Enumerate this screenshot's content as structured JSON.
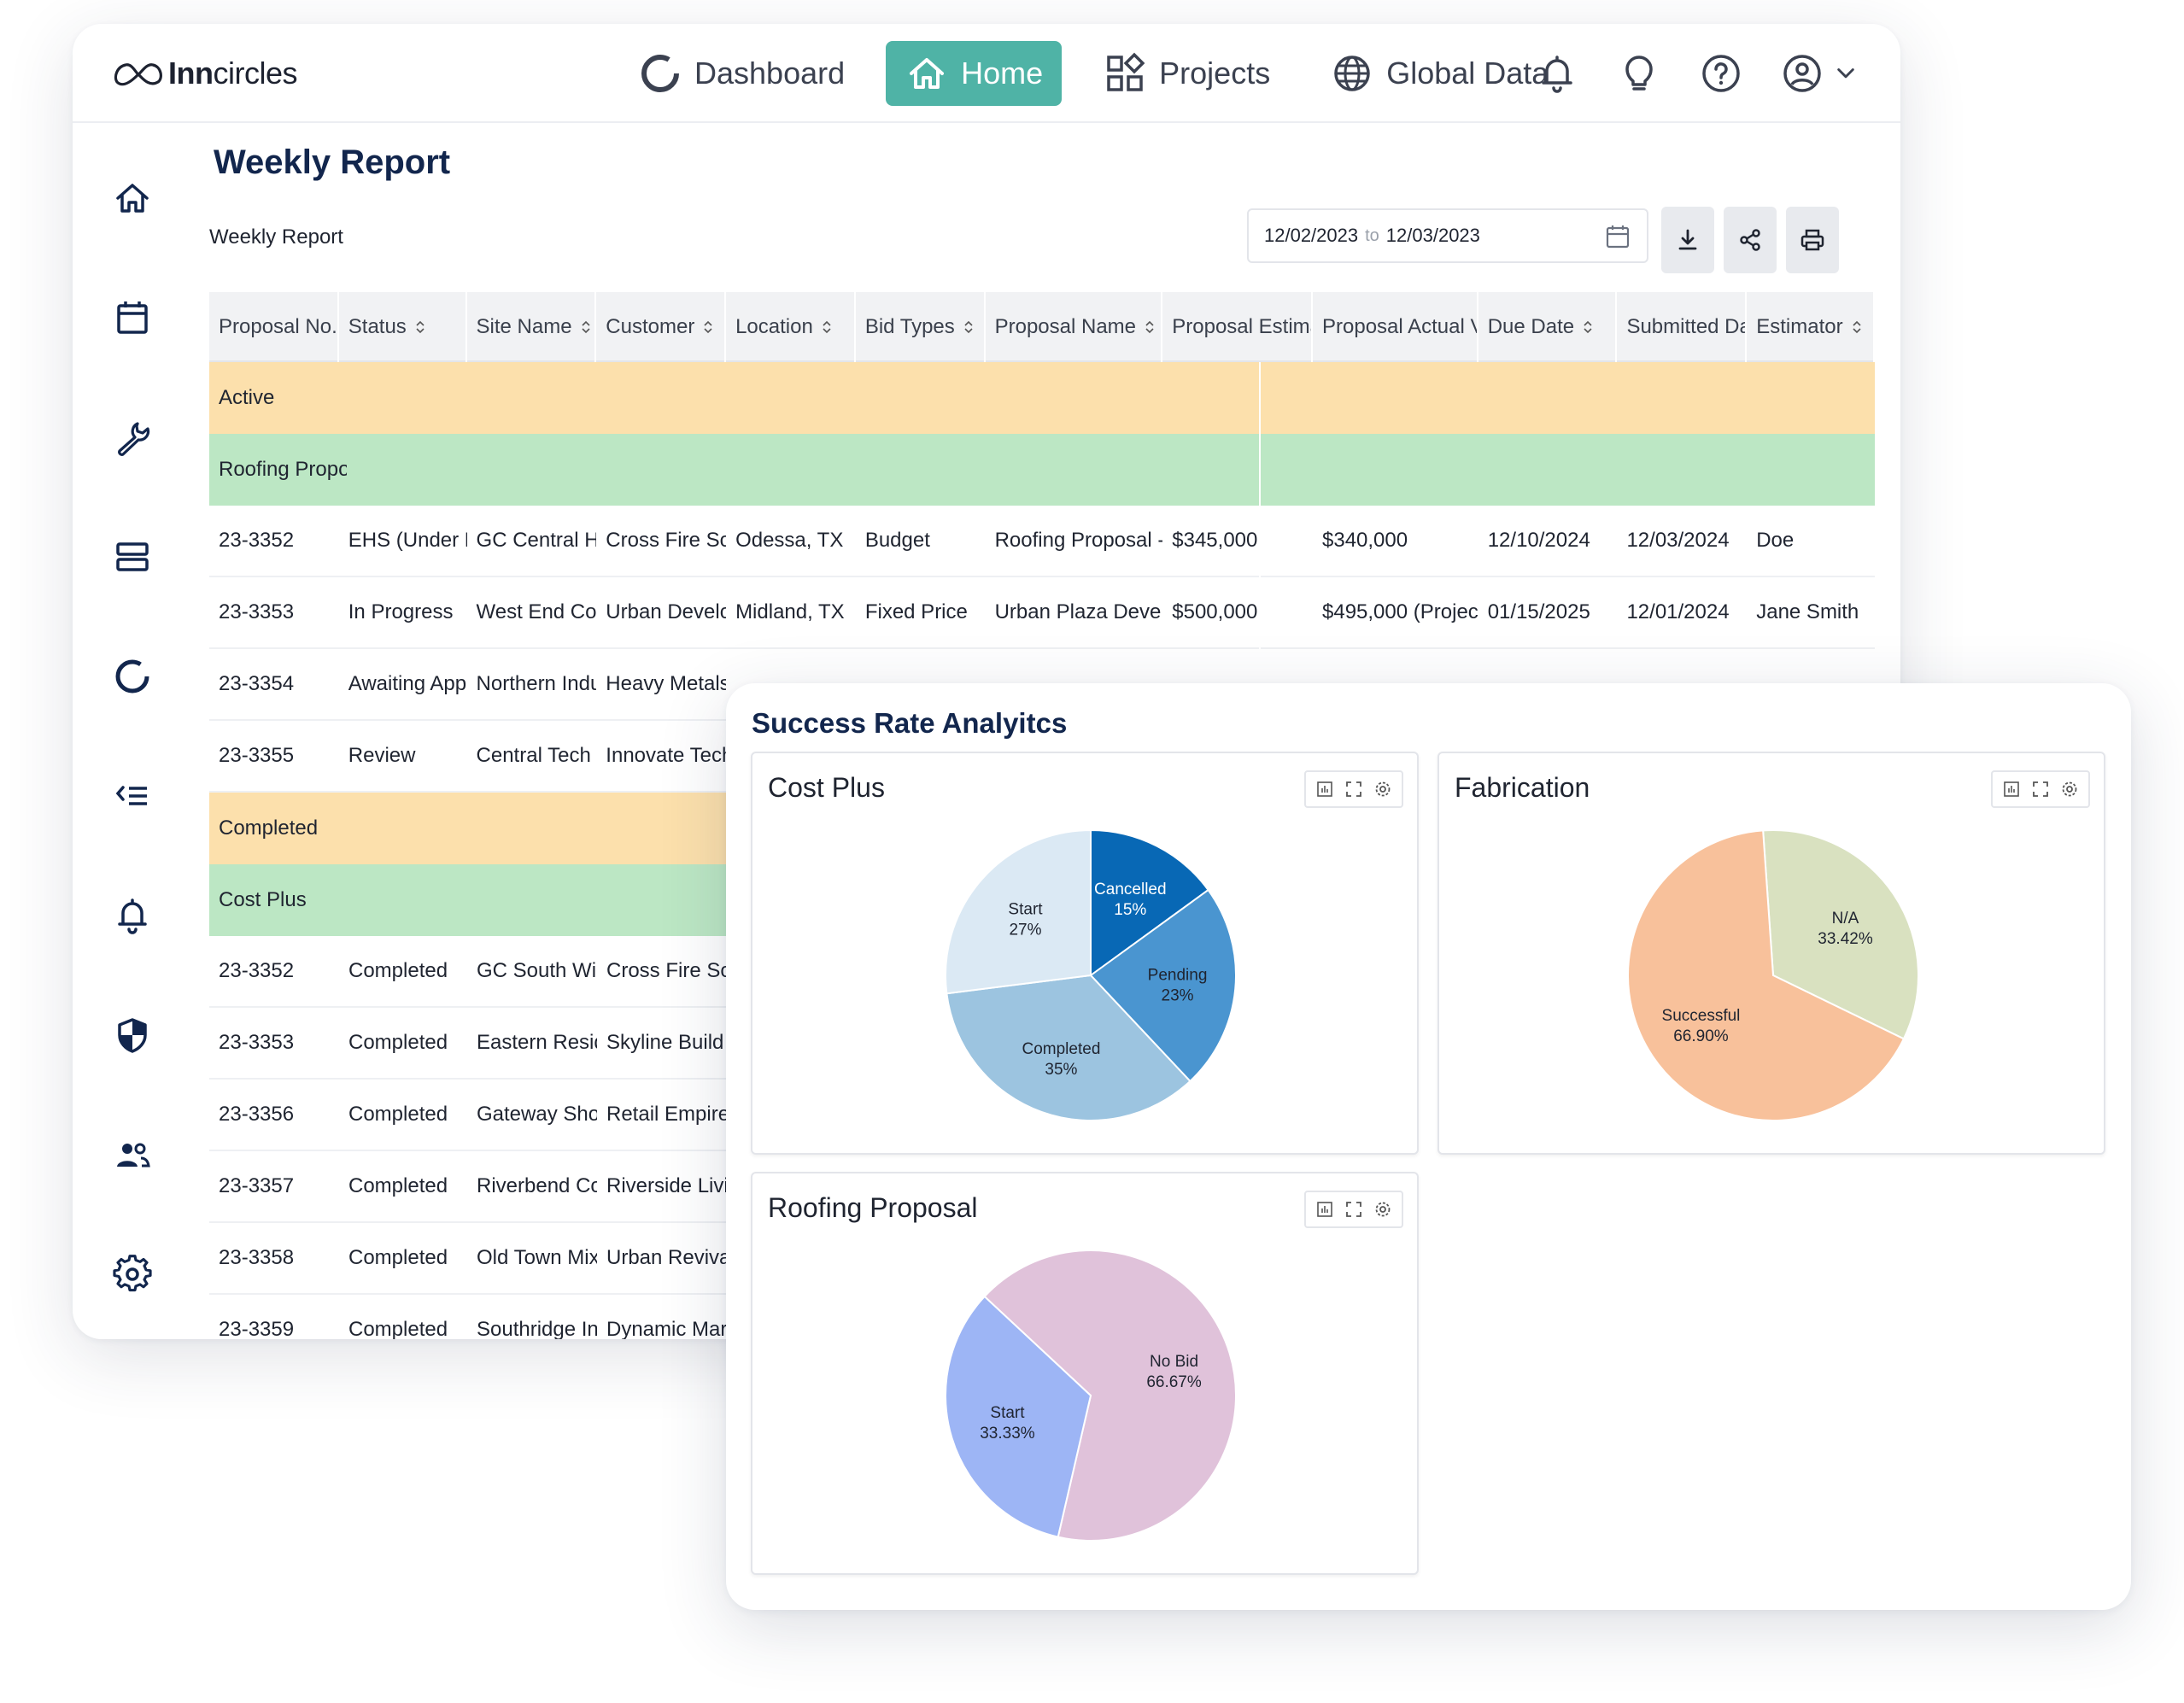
{
  "brand": {
    "name_bold": "Inn",
    "name_rest": "circles"
  },
  "nav": {
    "dashboard": "Dashboard",
    "home": "Home",
    "projects": "Projects",
    "global_data": "Global Data"
  },
  "colors": {
    "accent": "#4fb3a6",
    "title_navy": "#12264d",
    "row_orange": "#fce0ac",
    "row_green": "#bce7c4"
  },
  "page": {
    "title": "Weekly Report",
    "subtitle": "Weekly Report"
  },
  "date_range": {
    "from": "12/02/2023",
    "sep": "to",
    "to": "12/03/2023"
  },
  "table": {
    "headers": [
      "Proposal No.",
      "Status",
      "Site Name",
      "Customer",
      "Location",
      "Bid Types",
      "Proposal Name",
      "Proposal Estima",
      "Proposal Actual V",
      "Due Date",
      "Submitted Da",
      "Estimator"
    ],
    "group_active": "Active",
    "subgroup_roofing": "Roofing Propo",
    "active_rows": [
      [
        "23-3352",
        "EHS (Under R",
        "GC Central H",
        "Cross Fire Sol",
        "Odessa, TX",
        "Budget",
        "Roofing Proposal -",
        "$345,000",
        "$340,000",
        "12/10/2024",
        "12/03/2024",
        "Doe"
      ],
      [
        "23-3353",
        "In Progress",
        "West End Cor",
        "Urban Develo",
        "Midland, TX",
        "Fixed Price",
        "Urban Plaza Develo",
        "$500,000",
        "$495,000 (Projec",
        "01/15/2025",
        "12/01/2024",
        "Jane Smith"
      ],
      [
        "23-3354",
        "Awaiting App",
        "Northern Indu",
        "Heavy Metals",
        "",
        "",
        "",
        "",
        "",
        "",
        "",
        ""
      ],
      [
        "23-3355",
        "Review",
        "Central Tech (",
        "Innovate Tech",
        "",
        "",
        "",
        "",
        "",
        "",
        "",
        ""
      ]
    ],
    "group_completed": "Completed",
    "subgroup_costplus": "Cost Plus",
    "completed_rows": [
      [
        "23-3352",
        "Completed",
        "GC South Wi",
        "Cross Fire So"
      ],
      [
        "23-3353",
        "Completed",
        "Eastern Resid",
        "Skyline Build"
      ],
      [
        "23-3356",
        "Completed",
        "Gateway Sho",
        "Retail Empire"
      ],
      [
        "23-3357",
        "Completed",
        "Riverbend Co",
        "Riverside Livi"
      ],
      [
        "23-3358",
        "Completed",
        "Old Town Mix",
        "Urban Reviva"
      ],
      [
        "23-3359",
        "Completed",
        "Southridge In",
        "Dynamic Mar"
      ]
    ]
  },
  "analytics": {
    "title": "Success Rate Analyitcs"
  },
  "chart_data": [
    {
      "type": "pie",
      "title": "Cost Plus",
      "categories": [
        "Cancelled",
        "Pending",
        "Completed",
        "Start"
      ],
      "values": [
        15,
        23,
        35,
        27
      ],
      "labels": [
        "15%",
        "23%",
        "35%",
        "27%"
      ],
      "colors": [
        "#0868b5",
        "#4a95d0",
        "#9cc4e0",
        "#dbe9f4"
      ]
    },
    {
      "type": "pie",
      "title": "Fabrication",
      "categories": [
        "N/A",
        "Successful"
      ],
      "values": [
        33.42,
        66.9
      ],
      "labels": [
        "33.42%",
        "66.90%"
      ],
      "colors": [
        "#d9e1c0",
        "#f8c19b"
      ]
    },
    {
      "type": "pie",
      "title": "Roofing Proposal",
      "categories": [
        "No Bid",
        "Start"
      ],
      "values": [
        66.67,
        33.33
      ],
      "labels": [
        "66.67%",
        "33.33%"
      ],
      "colors": [
        "#e0c2da",
        "#9db5f5"
      ]
    }
  ]
}
